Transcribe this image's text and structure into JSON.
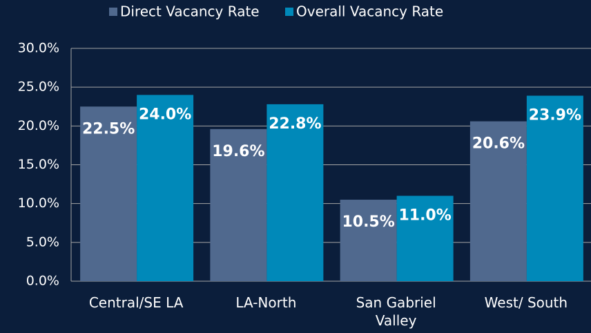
{
  "chart_data": {
    "type": "bar",
    "categories": [
      "Central/SE LA",
      "LA-North",
      "San Gabriel Valley",
      "West/ South"
    ],
    "series": [
      {
        "name": "Direct Vacancy Rate",
        "color": "#50698e",
        "values": [
          22.5,
          19.6,
          10.5,
          20.6
        ],
        "value_labels": [
          "22.5%",
          "19.6%",
          "10.5%",
          "20.6%"
        ]
      },
      {
        "name": "Overall Vacancy Rate",
        "color": "#0089b9",
        "values": [
          24.0,
          22.8,
          11.0,
          23.9
        ],
        "value_labels": [
          "24.0%",
          "22.8%",
          "11.0%",
          "23.9%"
        ]
      }
    ],
    "ylim": [
      0,
      30
    ],
    "yticks": [
      {
        "value": 0,
        "label": "0.0%"
      },
      {
        "value": 5,
        "label": "5.0%"
      },
      {
        "value": 10,
        "label": "10.0%"
      },
      {
        "value": 15,
        "label": "15.0%"
      },
      {
        "value": 20,
        "label": "20.0%"
      },
      {
        "value": 25,
        "label": "25.0%"
      },
      {
        "value": 30,
        "label": "30.0%"
      }
    ],
    "grid": true,
    "legend": "top"
  }
}
